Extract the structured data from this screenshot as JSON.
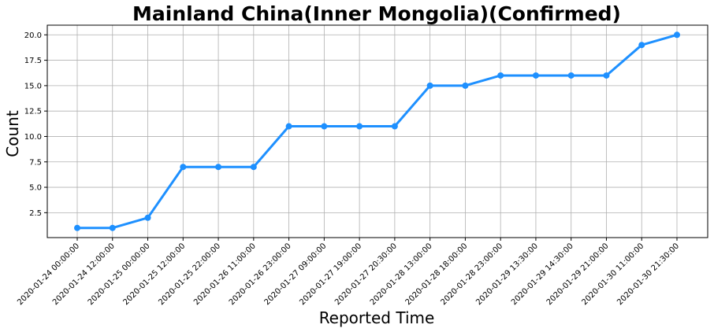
{
  "chart_data": {
    "type": "line",
    "title": "Mainland China(Inner Mongolia)(Confirmed)",
    "xlabel": "Reported Time",
    "ylabel": "Count",
    "categories": [
      "2020-01-24 00:00:00",
      "2020-01-24 12:00:00",
      "2020-01-25 00:00:00",
      "2020-01-25 12:00:00",
      "2020-01-25 22:00:00",
      "2020-01-26 11:00:00",
      "2020-01-26 23:00:00",
      "2020-01-27 09:00:00",
      "2020-01-27 19:00:00",
      "2020-01-27 20:30:00",
      "2020-01-28 13:00:00",
      "2020-01-28 18:00:00",
      "2020-01-28 23:00:00",
      "2020-01-29 13:30:00",
      "2020-01-29 14:30:00",
      "2020-01-29 21:00:00",
      "2020-01-30 11:00:00",
      "2020-01-30 21:30:00"
    ],
    "series": [
      {
        "values": [
          1,
          1,
          2,
          7,
          7,
          7,
          11,
          11,
          11,
          11,
          15,
          15,
          16,
          16,
          16,
          16,
          19,
          20
        ]
      }
    ],
    "yticks": [
      "2.5",
      "5.0",
      "7.5",
      "10.0",
      "12.5",
      "15.0",
      "17.5",
      "20.0"
    ],
    "ylim": [
      0.05,
      20.95
    ],
    "grid": true,
    "line_color": "#1E90FF"
  }
}
